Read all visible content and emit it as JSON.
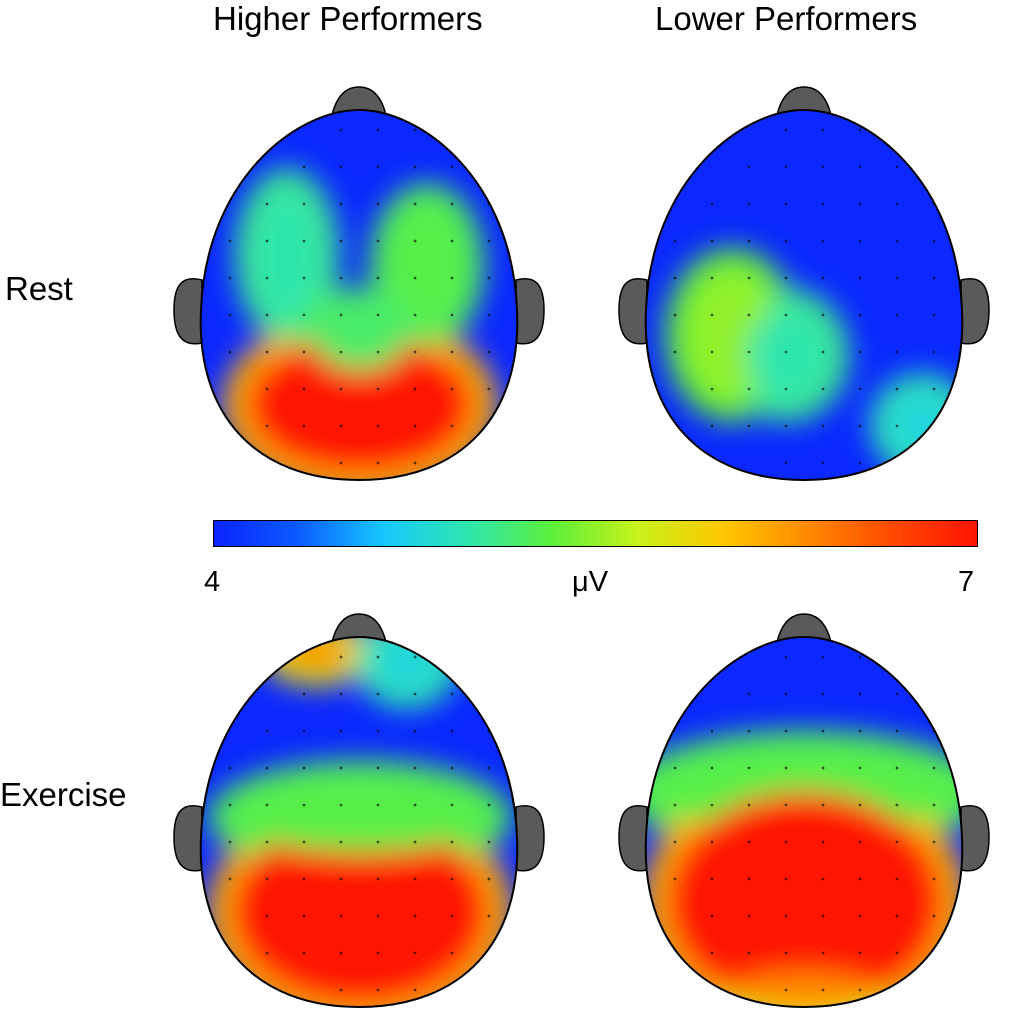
{
  "columns": [
    "Higher Performers",
    "Lower Performers"
  ],
  "rows": [
    "Rest",
    "Exercise"
  ],
  "colorbar": {
    "min_label": "4",
    "max_label": "7",
    "unit": "μV",
    "min": 4,
    "max": 7,
    "colormap": [
      "#0a24ff",
      "#0a5cff",
      "#16c8ff",
      "#2fe6ae",
      "#5cf03a",
      "#c8f21a",
      "#ffc800",
      "#ff8a00",
      "#ff4a00",
      "#ff1400"
    ]
  },
  "colors": {
    "background_field": "#0a28ff",
    "head_outline": "#000000",
    "nose_and_ears": "#5a5a5a",
    "electrode_dot": "#000000"
  },
  "chart_data": {
    "type": "heatmap",
    "description_values": "Scalp topography maps of EEG amplitude (μV), colour scale 4–7 μV",
    "panels": [
      {
        "column": "Higher Performers",
        "row": "Rest",
        "regions": [
          {
            "area": "parieto-occipital (posterior)",
            "value": 7.0
          },
          {
            "area": "right frontal-central",
            "value": 5.3
          },
          {
            "area": "left frontal-central",
            "value": 5.0
          },
          {
            "area": "midline central",
            "value": 5.2
          },
          {
            "area": "frontal",
            "value": 4.0
          }
        ]
      },
      {
        "column": "Lower Performers",
        "row": "Rest",
        "regions": [
          {
            "area": "left central-temporal",
            "value": 5.5
          },
          {
            "area": "left-central parietal",
            "value": 5.0
          },
          {
            "area": "right occipital-temporal",
            "value": 4.8
          },
          {
            "area": "frontal",
            "value": 4.0
          }
        ]
      },
      {
        "column": "Higher Performers",
        "row": "Exercise",
        "regions": [
          {
            "area": "parieto-occipital (posterior)",
            "value": 7.0
          },
          {
            "area": "central belt",
            "value": 5.3
          },
          {
            "area": "left frontal edge",
            "value": 6.5
          },
          {
            "area": "right frontal",
            "value": 4.8
          },
          {
            "area": "frontal",
            "value": 4.0
          }
        ]
      },
      {
        "column": "Lower Performers",
        "row": "Exercise",
        "regions": [
          {
            "area": "central-parietal-occipital",
            "value": 7.0
          },
          {
            "area": "fronto-central belt",
            "value": 5.3
          },
          {
            "area": "posterior edge",
            "value": 6.3
          },
          {
            "area": "frontal",
            "value": 4.0
          }
        ]
      }
    ]
  }
}
